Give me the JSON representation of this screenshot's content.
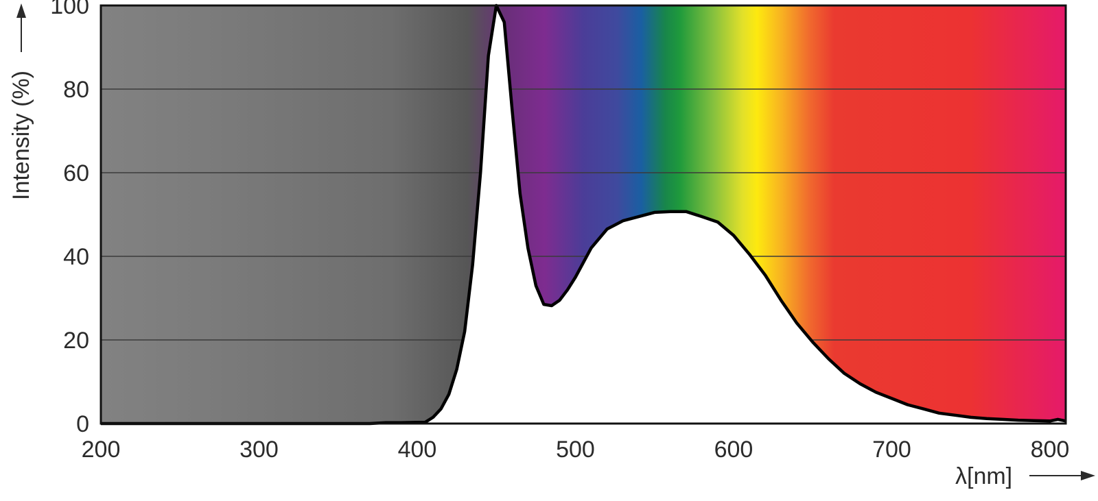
{
  "chart_data": {
    "type": "area",
    "title": "",
    "xlabel": "λ[nm]",
    "ylabel": "Intensity (%)",
    "xlim": [
      200,
      810
    ],
    "ylim": [
      0,
      100
    ],
    "x_ticks": [
      200,
      300,
      400,
      500,
      600,
      700,
      800
    ],
    "y_ticks": [
      0,
      20,
      40,
      60,
      80,
      100
    ],
    "grid": "horizontal",
    "background": "visible spectrum color gradient above curve",
    "series": [
      {
        "x": [
          200,
          370,
          380,
          390,
          400,
          405,
          410,
          415,
          420,
          425,
          430,
          435,
          440,
          445,
          450,
          455,
          460,
          465,
          470,
          475,
          480,
          485,
          490,
          495,
          500,
          510,
          520,
          530,
          540,
          550,
          560,
          570,
          580,
          590,
          600,
          610,
          620,
          630,
          640,
          650,
          660,
          670,
          680,
          690,
          700,
          710,
          720,
          730,
          740,
          750,
          760,
          770,
          780,
          790,
          800,
          805,
          810
        ],
        "y": [
          0,
          0,
          0.2,
          0.2,
          0.3,
          0.3,
          1.5,
          3.5,
          7,
          13,
          22,
          38,
          60,
          88,
          100,
          96,
          75,
          55,
          42,
          33,
          28.5,
          28.2,
          29.5,
          32,
          35,
          42,
          46.5,
          48.5,
          49.5,
          50.5,
          50.7,
          50.7,
          49.5,
          48.2,
          45,
          40.5,
          35.5,
          29.5,
          24,
          19.5,
          15.5,
          12,
          9.5,
          7.5,
          6,
          4.5,
          3.5,
          2.5,
          2,
          1.5,
          1.2,
          1,
          0.8,
          0.7,
          0.6,
          1,
          0.6
        ]
      }
    ]
  }
}
